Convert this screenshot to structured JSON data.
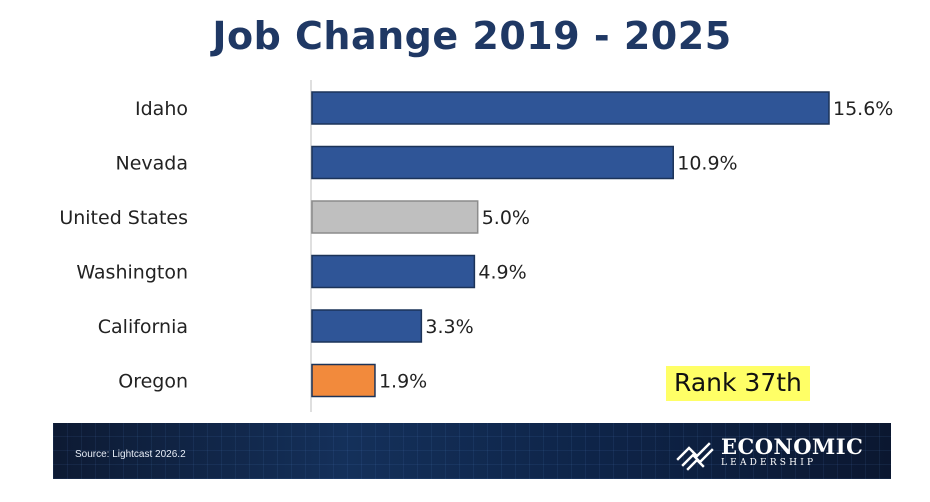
{
  "chart_data": {
    "type": "bar",
    "orientation": "horizontal",
    "title": "Job Change 2019 - 2025",
    "categories": [
      "Idaho",
      "Nevada",
      "United States",
      "Washington",
      "California",
      "Oregon"
    ],
    "values": [
      15.6,
      10.9,
      5.0,
      4.9,
      3.3,
      1.9
    ],
    "value_labels": [
      "15.6%",
      "10.9%",
      "5.0%",
      "4.9%",
      "3.3%",
      "1.9%"
    ],
    "bar_colors": [
      "#2f5597",
      "#2f5597",
      "#bfbfbf",
      "#2f5597",
      "#2f5597",
      "#f28a3c"
    ],
    "xlim": [
      0,
      15.6
    ],
    "grid": false,
    "legend": "none"
  },
  "annotation": {
    "rank_text": "Rank 37th",
    "highlight_color": "#ffff66"
  },
  "footer": {
    "source": "Source: Lightcast 2026.2",
    "logo_top": "ECONOMIC",
    "logo_bottom": "LEADERSHIP"
  },
  "colors": {
    "title": "#1f3864",
    "footer_bg": "#13284f"
  }
}
